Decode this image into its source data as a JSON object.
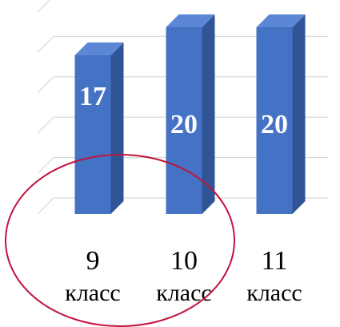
{
  "chart_data": {
    "type": "bar",
    "categories": [
      {
        "line1": "9",
        "line2": "класс"
      },
      {
        "line1": "10",
        "line2": "класс"
      },
      {
        "line1": "11",
        "line2": "класс"
      }
    ],
    "values": [
      17,
      20,
      20
    ],
    "value_labels": [
      "17",
      "20",
      "20"
    ],
    "title": "",
    "xlabel": "",
    "ylabel": "",
    "ylim": [
      0,
      20
    ],
    "grid": true,
    "legend": "none",
    "style": "3d-columns",
    "colors": {
      "bar_front": "#4472c4",
      "bar_side": "#2f5597",
      "bar_top": "#5b87d6",
      "gridline": "#d9d9d9",
      "annotation_circle": "#c0143c"
    },
    "annotation": "circle-highlight-around-first-categories"
  }
}
